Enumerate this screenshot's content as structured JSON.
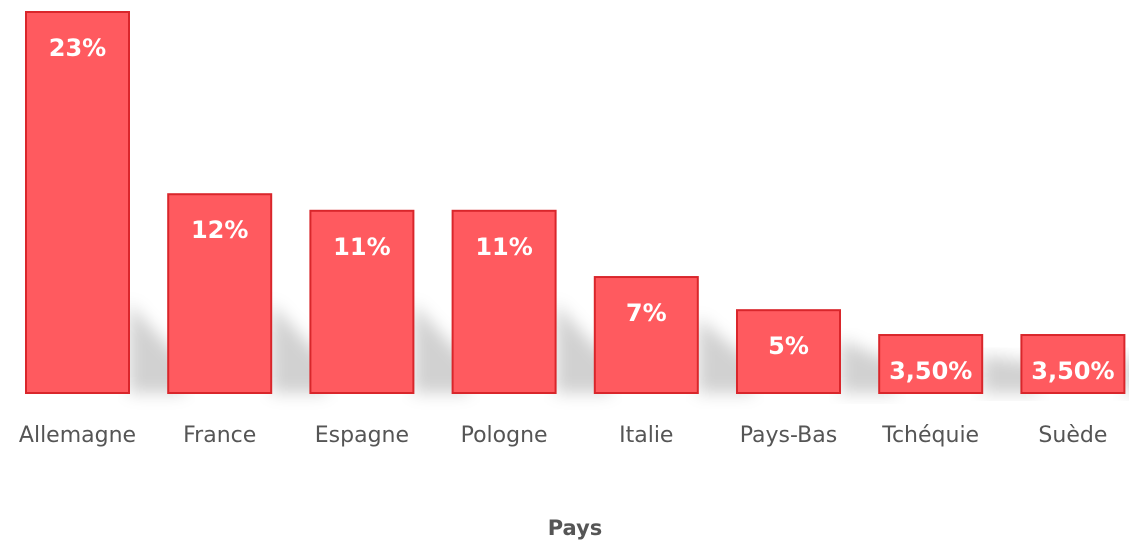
{
  "chart_data": {
    "type": "bar",
    "categories": [
      "Allemagne",
      "France",
      "Espagne",
      "Pologne",
      "Italie",
      "Pays-Bas",
      "Tchéquie",
      "Suède"
    ],
    "values": [
      23,
      12,
      11,
      11,
      7,
      5,
      3.5,
      3.5
    ],
    "data_labels": [
      "23%",
      "12%",
      "11%",
      "11%",
      "7%",
      "5%",
      "3,50%",
      "3,50%"
    ],
    "title": "",
    "xlabel": "Pays",
    "ylabel": "",
    "ylim": [
      0,
      23
    ],
    "grid": false,
    "legend": "none",
    "colors": {
      "bar_fill": "#ff5a5f",
      "bar_stroke": "#d9262b",
      "label": "#ffffff",
      "axis_text": "#555555"
    }
  }
}
